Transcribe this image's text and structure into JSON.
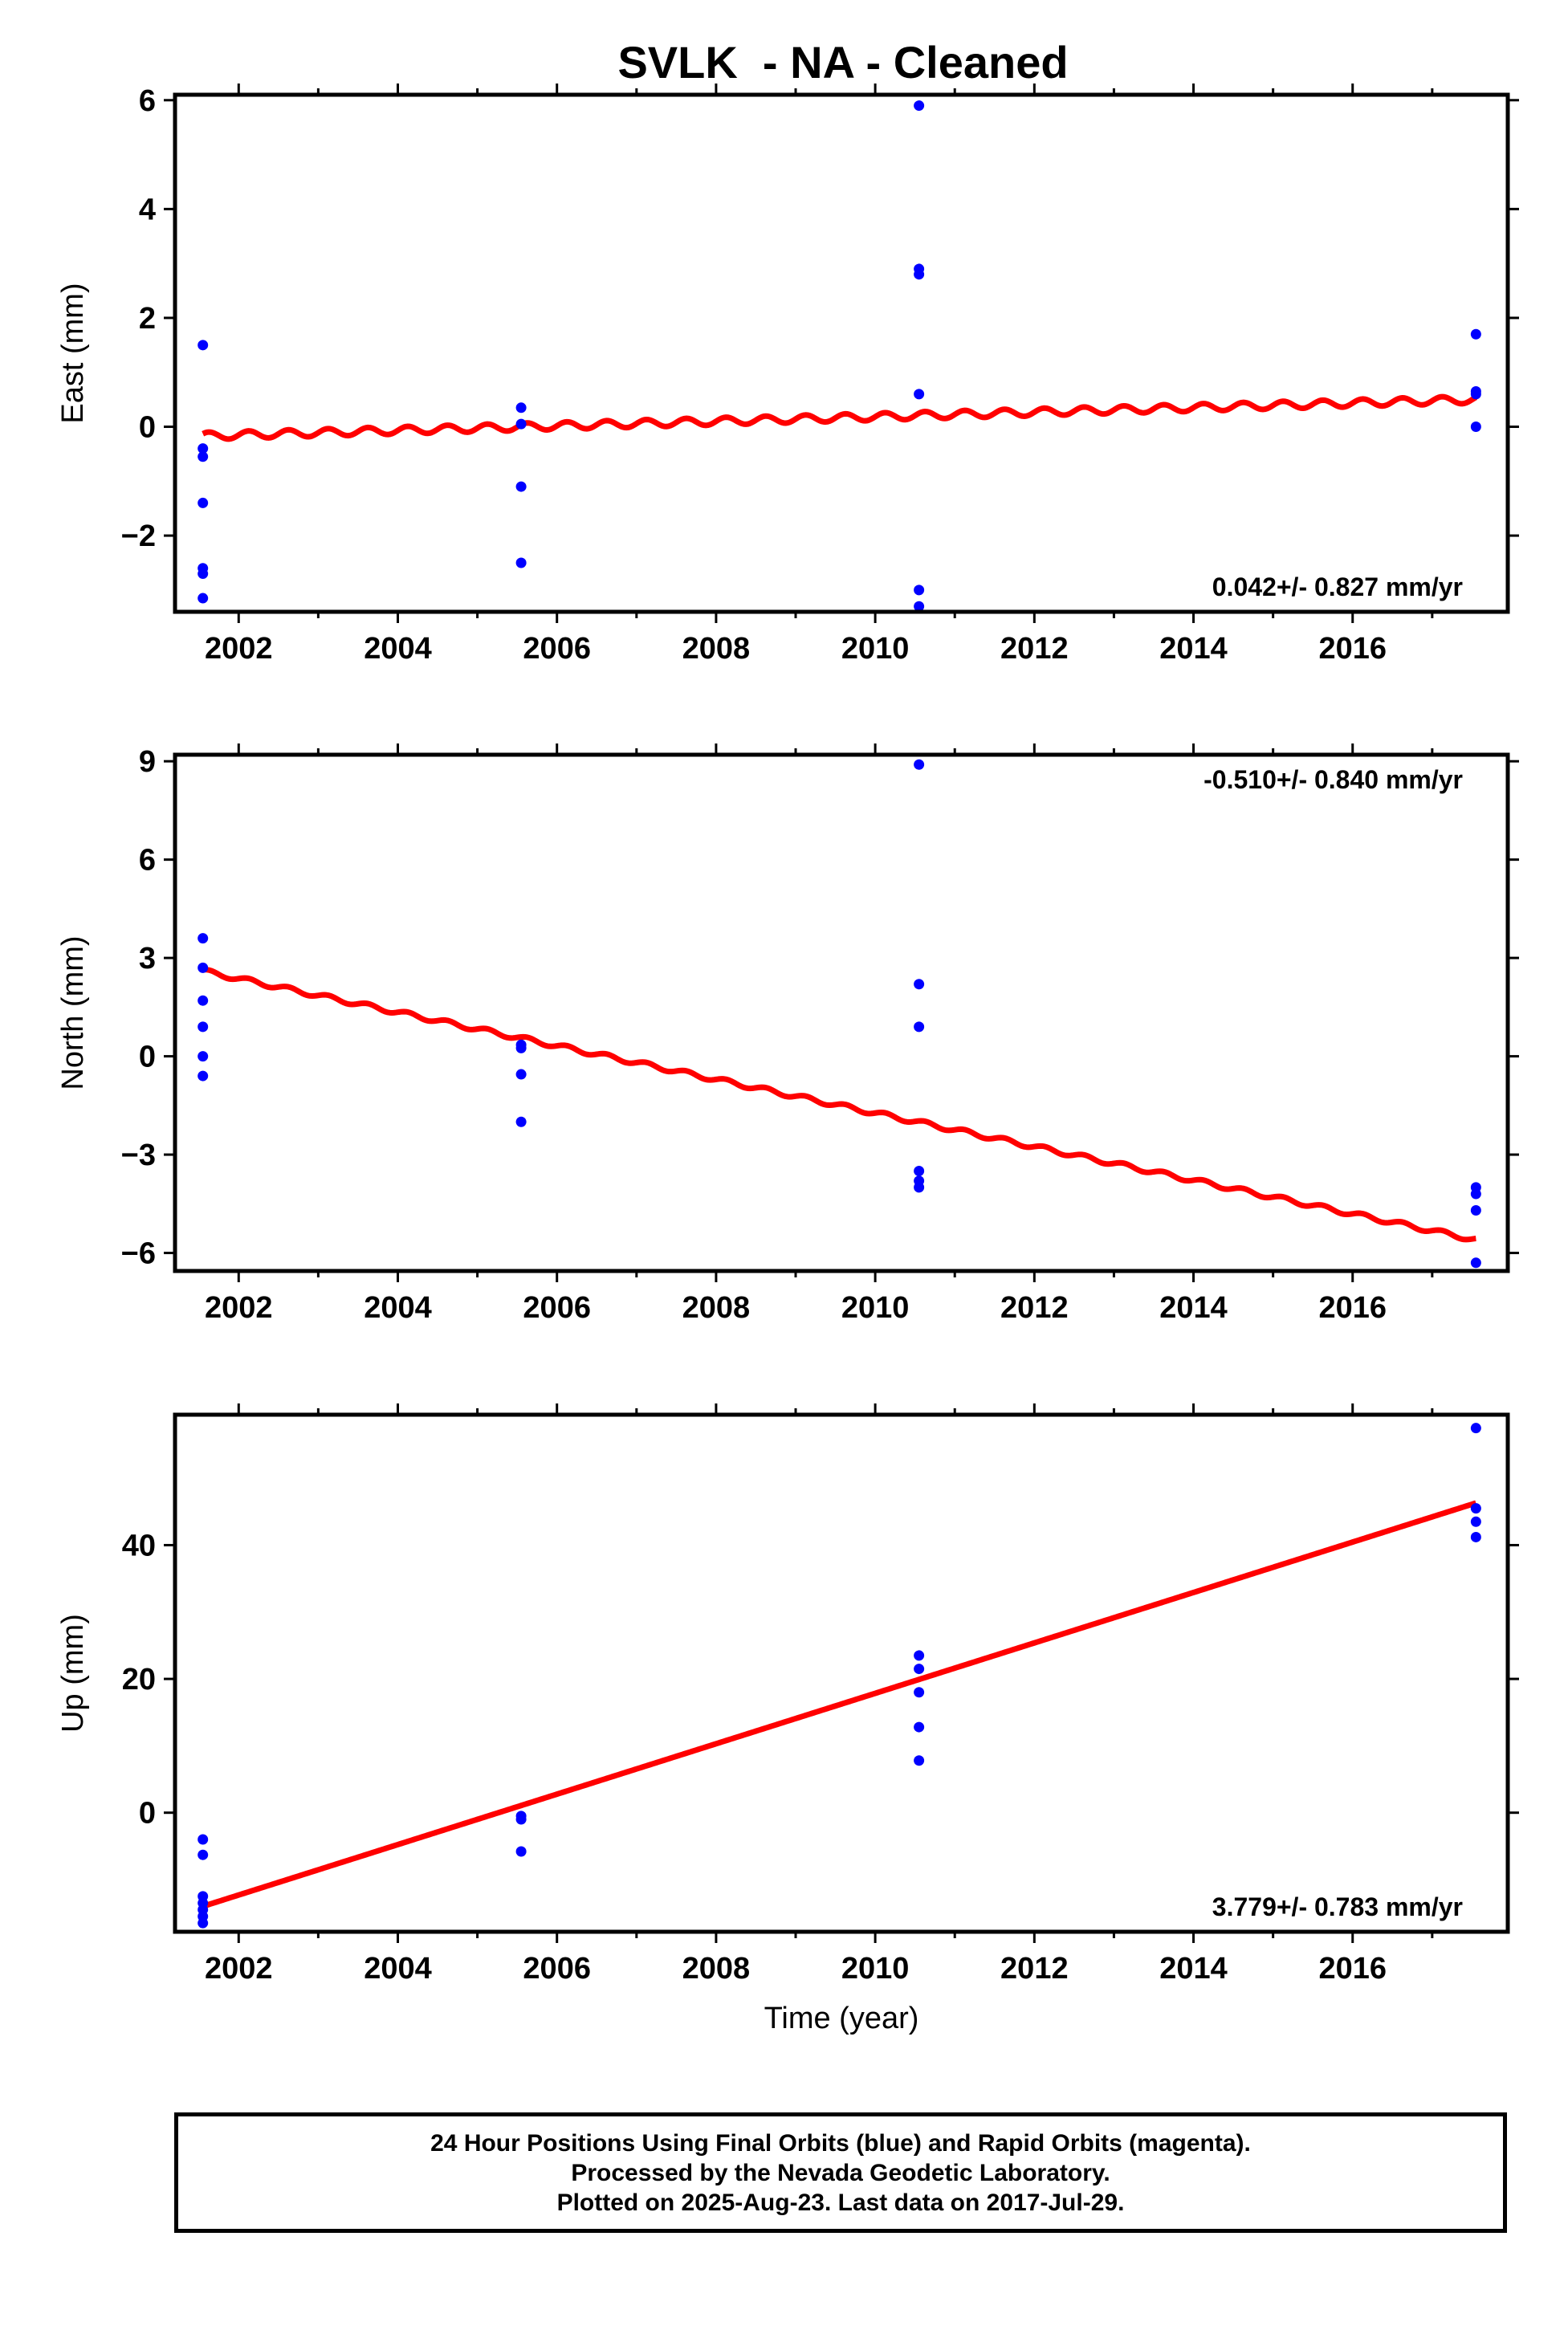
{
  "title": "SVLK  - NA - Cleaned",
  "colors": {
    "data": "#0000ff",
    "fit": "#ff0000",
    "axes": "#000000"
  },
  "chart_data": [
    {
      "type": "scatter",
      "ylabel": "East (mm)",
      "xlabel": "",
      "xlim": [
        2001.2,
        2017.95
      ],
      "ylim": [
        -3.4,
        6.1
      ],
      "xticks": [
        2002,
        2004,
        2006,
        2008,
        2010,
        2012,
        2014,
        2016
      ],
      "xtick_labels": [
        "2002",
        "2004",
        "2006",
        "2008",
        "2010",
        "2012",
        "2014",
        "2016"
      ],
      "yticks": [
        -2,
        0,
        2,
        4,
        6
      ],
      "ytick_labels": [
        "−2",
        "0",
        "2",
        "4",
        "6"
      ],
      "rate_label": "0.042+/- 0.827 mm/yr",
      "rate_position": "bottom-right",
      "points": [
        [
          2001.55,
          1.5
        ],
        [
          2001.55,
          -0.4
        ],
        [
          2001.55,
          -0.55
        ],
        [
          2001.55,
          -1.4
        ],
        [
          2001.55,
          -2.6
        ],
        [
          2001.55,
          -2.7
        ],
        [
          2001.55,
          -3.15
        ],
        [
          2005.55,
          0.35
        ],
        [
          2005.55,
          0.05
        ],
        [
          2005.55,
          -1.1
        ],
        [
          2005.55,
          -2.5
        ],
        [
          2010.55,
          5.9
        ],
        [
          2010.55,
          2.9
        ],
        [
          2010.55,
          2.8
        ],
        [
          2010.55,
          0.6
        ],
        [
          2010.55,
          -3.0
        ],
        [
          2010.55,
          -3.3
        ],
        [
          2017.55,
          1.7
        ],
        [
          2017.55,
          0.65
        ],
        [
          2017.55,
          0.6
        ],
        [
          2017.55,
          0.0
        ]
      ],
      "fit": {
        "start": [
          2001.55,
          -0.17
        ],
        "end": [
          2017.55,
          0.5
        ],
        "seasonal_amplitude": 0.07
      }
    },
    {
      "type": "scatter",
      "ylabel": "North (mm)",
      "xlabel": "",
      "xlim": [
        2001.2,
        2017.95
      ],
      "ylim": [
        -6.55,
        9.2
      ],
      "xticks": [
        2002,
        2004,
        2006,
        2008,
        2010,
        2012,
        2014,
        2016
      ],
      "xtick_labels": [
        "2002",
        "2004",
        "2006",
        "2008",
        "2010",
        "2012",
        "2014",
        "2016"
      ],
      "yticks": [
        -6,
        -3,
        0,
        3,
        6,
        9
      ],
      "ytick_labels": [
        "−6",
        "−3",
        "0",
        "3",
        "6",
        "9"
      ],
      "rate_label": "-0.510+/- 0.840 mm/yr",
      "rate_position": "top-right",
      "points": [
        [
          2001.55,
          3.6
        ],
        [
          2001.55,
          2.7
        ],
        [
          2001.55,
          1.7
        ],
        [
          2001.55,
          0.9
        ],
        [
          2001.55,
          0.0
        ],
        [
          2001.55,
          -0.6
        ],
        [
          2005.55,
          0.35
        ],
        [
          2005.55,
          0.25
        ],
        [
          2005.55,
          -0.55
        ],
        [
          2005.55,
          -2.0
        ],
        [
          2010.55,
          8.9
        ],
        [
          2010.55,
          2.2
        ],
        [
          2010.55,
          0.9
        ],
        [
          2010.55,
          -3.5
        ],
        [
          2010.55,
          -3.8
        ],
        [
          2010.55,
          -4.0
        ],
        [
          2017.55,
          -4.0
        ],
        [
          2017.55,
          -4.2
        ],
        [
          2017.55,
          -4.7
        ],
        [
          2017.55,
          -6.3
        ]
      ],
      "fit": {
        "start": [
          2001.55,
          2.6
        ],
        "end": [
          2017.55,
          -5.6
        ],
        "seasonal_amplitude": 0.07
      }
    },
    {
      "type": "scatter",
      "ylabel": "Up (mm)",
      "xlabel": "Time (year)",
      "xlim": [
        2001.2,
        2017.95
      ],
      "ylim": [
        -17.8,
        59.5
      ],
      "xticks": [
        2002,
        2004,
        2006,
        2008,
        2010,
        2012,
        2014,
        2016
      ],
      "xtick_labels": [
        "2002",
        "2004",
        "2006",
        "2008",
        "2010",
        "2012",
        "2014",
        "2016"
      ],
      "yticks": [
        0,
        20,
        40
      ],
      "ytick_labels": [
        "0",
        "20",
        "40"
      ],
      "rate_label": "3.779+/- 0.783 mm/yr",
      "rate_position": "bottom-right",
      "points": [
        [
          2001.55,
          -4.0
        ],
        [
          2001.55,
          -6.3
        ],
        [
          2001.55,
          -12.5
        ],
        [
          2001.55,
          -13.5
        ],
        [
          2001.55,
          -14.5
        ],
        [
          2001.55,
          -15.5
        ],
        [
          2001.55,
          -16.5
        ],
        [
          2005.55,
          -0.5
        ],
        [
          2005.55,
          -1.0
        ],
        [
          2005.55,
          -5.8
        ],
        [
          2010.55,
          23.5
        ],
        [
          2010.55,
          21.5
        ],
        [
          2010.55,
          18.0
        ],
        [
          2010.55,
          12.8
        ],
        [
          2010.55,
          7.8
        ],
        [
          2017.55,
          57.5
        ],
        [
          2017.55,
          45.5
        ],
        [
          2017.55,
          43.5
        ],
        [
          2017.55,
          41.2
        ]
      ],
      "fit": {
        "start": [
          2001.55,
          -14.0
        ],
        "end": [
          2017.55,
          46.3
        ],
        "seasonal_amplitude": 0.0
      }
    }
  ],
  "legend": {
    "line1": "24 Hour Positions Using Final Orbits (blue) and Rapid Orbits (magenta).",
    "line2": "Processed by the Nevada Geodetic Laboratory.",
    "line3": "Plotted on 2025-Aug-23. Last data on 2017-Jul-29."
  }
}
